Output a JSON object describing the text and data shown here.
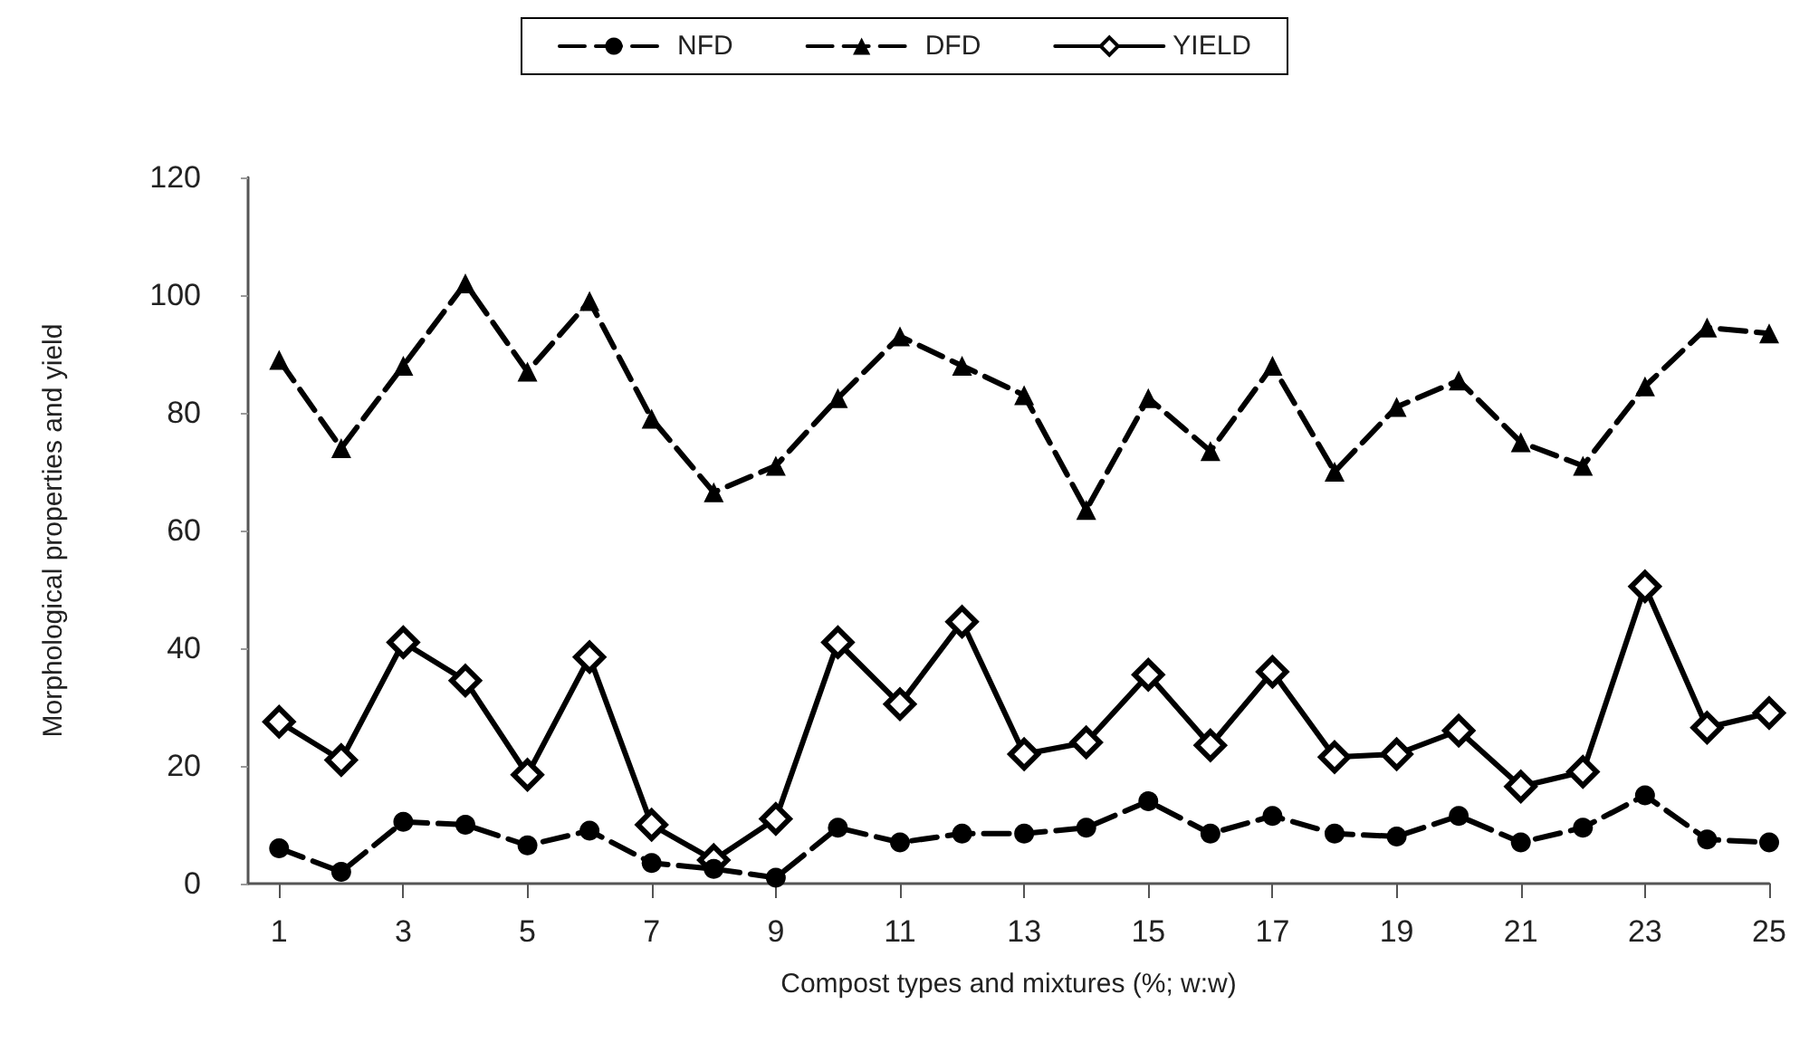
{
  "chart_data": {
    "type": "line",
    "xlabel": "Compost types and mixtures (%; w:w)",
    "ylabel": "Morphological properties and yield",
    "x": [
      1,
      2,
      3,
      4,
      5,
      6,
      7,
      8,
      9,
      10,
      11,
      12,
      13,
      14,
      15,
      16,
      17,
      18,
      19,
      20,
      21,
      22,
      23,
      24,
      25
    ],
    "xlim": [
      0.5,
      25
    ],
    "xticks": [
      1,
      3,
      5,
      7,
      9,
      11,
      13,
      15,
      17,
      19,
      21,
      23,
      25
    ],
    "ylim": [
      0,
      120
    ],
    "yticks": [
      0,
      20,
      40,
      60,
      80,
      100,
      120
    ],
    "grid": false,
    "legend": "top",
    "series": [
      {
        "name": "NFD",
        "color": "#000000",
        "marker": "circle",
        "line_style": "dashed",
        "values": [
          6,
          2,
          10.5,
          10,
          6.5,
          9,
          3.5,
          2.5,
          1,
          9.5,
          7,
          8.5,
          8.5,
          9.5,
          14,
          8.5,
          11.5,
          8.5,
          8,
          11.5,
          7,
          9.5,
          15,
          7.5,
          7
        ]
      },
      {
        "name": "DFD",
        "color": "#000000",
        "marker": "triangle",
        "line_style": "dashed",
        "values": [
          89,
          74,
          88,
          102,
          87,
          99,
          79,
          66.5,
          71,
          82.5,
          93,
          88,
          83,
          63.5,
          82.5,
          73.5,
          88,
          70,
          81,
          85.5,
          75,
          71,
          84.5,
          94.5,
          93.5
        ]
      },
      {
        "name": "YIELD",
        "color": "#000000",
        "marker": "diamond",
        "line_style": "solid",
        "values": [
          27.5,
          21,
          41,
          34.5,
          18.5,
          38.5,
          10,
          4,
          11,
          41,
          30.5,
          44.5,
          22,
          24,
          35.5,
          23.5,
          36,
          21.5,
          22,
          26,
          16.5,
          19,
          50.5,
          26.5,
          29
        ]
      }
    ]
  }
}
